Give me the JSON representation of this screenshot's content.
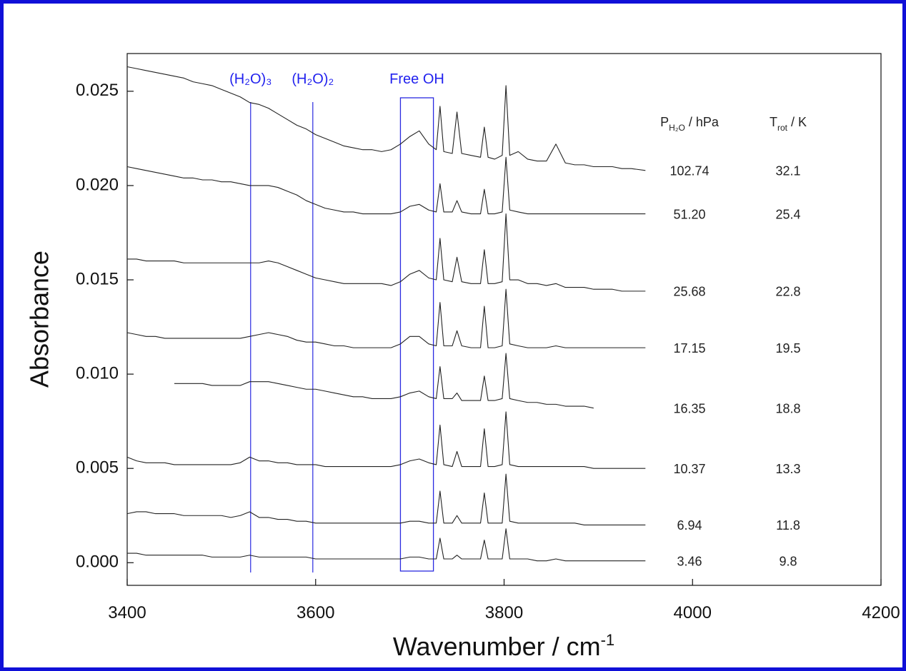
{
  "chart_data": {
    "type": "line",
    "ylabel": "Absorbance",
    "xlabel": {
      "text": "Wavenumber / cm",
      "sup": "-1"
    },
    "xlim": [
      3400,
      4200
    ],
    "xticks": [
      3400,
      3600,
      3800,
      4000,
      4200
    ],
    "ylim": [
      -0.0012,
      0.027
    ],
    "yticks": [
      {
        "value": 0,
        "label": "0.000"
      },
      {
        "value": 0.005,
        "label": "0.005"
      },
      {
        "value": 0.01,
        "label": "0.010"
      },
      {
        "value": 0.015,
        "label": "0.015"
      },
      {
        "value": 0.02,
        "label": "0.020"
      },
      {
        "value": 0.025,
        "label": "0.025"
      }
    ],
    "annotations": [
      {
        "text": "(H₂O)₃",
        "x": 3531
      },
      {
        "text": "(H₂O)₂",
        "x": 3597
      },
      {
        "text": "Free OH",
        "x": [
          3690,
          3725
        ]
      }
    ],
    "column_headers": [
      {
        "text": "P",
        "sub": "H₂O",
        "rest": " / hPa"
      },
      {
        "text": "T",
        "sub": "rot",
        "rest": " / K"
      }
    ],
    "x": [
      3400,
      3410,
      3420,
      3430,
      3440,
      3450,
      3460,
      3470,
      3480,
      3490,
      3500,
      3510,
      3520,
      3530,
      3540,
      3550,
      3560,
      3570,
      3580,
      3590,
      3600,
      3610,
      3620,
      3630,
      3640,
      3650,
      3660,
      3670,
      3680,
      3690,
      3700,
      3710,
      3720,
      3728,
      3732,
      3736,
      3745,
      3750,
      3755,
      3765,
      3775,
      3779,
      3783,
      3790,
      3798,
      3802,
      3806,
      3815,
      3825,
      3835,
      3845,
      3855,
      3865,
      3875,
      3885,
      3895,
      3905,
      3915,
      3925,
      3935,
      3950
    ],
    "series": [
      {
        "name": "102.74",
        "t_rot": "32.1",
        "color": "#222222",
        "values": [
          0.0263,
          0.0262,
          0.0261,
          0.026,
          0.0259,
          0.0258,
          0.0257,
          0.0255,
          0.0254,
          0.0253,
          0.0251,
          0.0249,
          0.0247,
          0.0244,
          0.0243,
          0.0241,
          0.0238,
          0.0235,
          0.0232,
          0.023,
          0.0227,
          0.0225,
          0.0223,
          0.0221,
          0.022,
          0.0219,
          0.0219,
          0.0218,
          0.0219,
          0.0222,
          0.0226,
          0.0229,
          0.0222,
          0.0219,
          0.0242,
          0.0218,
          0.0217,
          0.0239,
          0.0217,
          0.0216,
          0.0215,
          0.0231,
          0.0215,
          0.0214,
          0.0216,
          0.0253,
          0.0216,
          0.0218,
          0.0214,
          0.0213,
          0.0213,
          0.0222,
          0.0212,
          0.0211,
          0.0211,
          0.021,
          0.021,
          0.021,
          0.0209,
          0.0209,
          0.0208
        ]
      },
      {
        "name": "51.20",
        "t_rot": "25.4",
        "color": "#222222",
        "values": [
          0.021,
          0.0209,
          0.0208,
          0.0207,
          0.0206,
          0.0205,
          0.0204,
          0.0204,
          0.0203,
          0.0203,
          0.0202,
          0.0202,
          0.0201,
          0.02,
          0.02,
          0.02,
          0.0199,
          0.0197,
          0.0195,
          0.0192,
          0.019,
          0.0188,
          0.0187,
          0.0186,
          0.0186,
          0.0185,
          0.0185,
          0.0185,
          0.0185,
          0.0186,
          0.0189,
          0.019,
          0.0187,
          0.0186,
          0.0201,
          0.0186,
          0.0186,
          0.0192,
          0.0186,
          0.0185,
          0.0185,
          0.0198,
          0.0185,
          0.0185,
          0.0186,
          0.0215,
          0.0187,
          0.0186,
          0.0185,
          0.0185,
          0.0185,
          0.0185,
          0.0185,
          0.0185,
          0.0185,
          0.0185,
          0.0185,
          0.0185,
          0.0185,
          0.0185,
          0.0185
        ]
      },
      {
        "name": "25.68",
        "t_rot": "22.8",
        "color": "#222222",
        "values": [
          0.0161,
          0.0161,
          0.016,
          0.016,
          0.016,
          0.016,
          0.0159,
          0.0159,
          0.0159,
          0.0159,
          0.0159,
          0.0159,
          0.0159,
          0.0159,
          0.0159,
          0.016,
          0.0159,
          0.0157,
          0.0155,
          0.0153,
          0.0151,
          0.015,
          0.0149,
          0.0148,
          0.0148,
          0.0148,
          0.0148,
          0.0148,
          0.0147,
          0.0149,
          0.0153,
          0.0155,
          0.0151,
          0.015,
          0.0172,
          0.015,
          0.0149,
          0.0162,
          0.0149,
          0.0148,
          0.0148,
          0.0166,
          0.0148,
          0.0148,
          0.0149,
          0.0185,
          0.015,
          0.015,
          0.0148,
          0.0148,
          0.0147,
          0.0148,
          0.0146,
          0.0146,
          0.0146,
          0.0145,
          0.0145,
          0.0145,
          0.0144,
          0.0144,
          0.0144
        ]
      },
      {
        "name": "17.15",
        "t_rot": "19.5",
        "color": "#222222",
        "values": [
          0.0122,
          0.0121,
          0.012,
          0.012,
          0.0119,
          0.0119,
          0.0119,
          0.0119,
          0.0119,
          0.0119,
          0.0119,
          0.0119,
          0.0119,
          0.012,
          0.0121,
          0.0122,
          0.0121,
          0.012,
          0.0118,
          0.0117,
          0.0117,
          0.0116,
          0.0115,
          0.0115,
          0.0114,
          0.0114,
          0.0114,
          0.0114,
          0.0114,
          0.0116,
          0.012,
          0.012,
          0.0116,
          0.0115,
          0.0138,
          0.0115,
          0.0115,
          0.0123,
          0.0115,
          0.0114,
          0.0114,
          0.0136,
          0.0114,
          0.0114,
          0.0115,
          0.0145,
          0.0116,
          0.0115,
          0.0114,
          0.0114,
          0.0114,
          0.0115,
          0.0114,
          0.0114,
          0.0114,
          0.0114,
          0.0114,
          0.0114,
          0.0114,
          0.0114,
          0.0114
        ]
      },
      {
        "name": "16.35",
        "t_rot": "18.8",
        "color": "#222222",
        "values": [
          null,
          null,
          null,
          null,
          null,
          0.0095,
          0.0095,
          0.0095,
          0.0095,
          0.0094,
          0.0094,
          0.0094,
          0.0094,
          0.0096,
          0.0096,
          0.0096,
          0.0095,
          0.0094,
          0.0093,
          0.0092,
          0.0092,
          0.0091,
          0.009,
          0.0089,
          0.0088,
          0.0088,
          0.0087,
          0.0087,
          0.0087,
          0.0088,
          0.009,
          0.0091,
          0.0088,
          0.0087,
          0.0104,
          0.0087,
          0.0087,
          0.009,
          0.0086,
          0.0086,
          0.0086,
          0.0099,
          0.0086,
          0.0086,
          0.0087,
          0.0111,
          0.0087,
          0.0086,
          0.0085,
          0.0085,
          0.0084,
          0.0084,
          0.0083,
          0.0083,
          0.0083,
          0.0082,
          null,
          null,
          null,
          null,
          null
        ]
      },
      {
        "name": "10.37",
        "t_rot": "13.3",
        "color": "#222222",
        "values": [
          0.0056,
          0.0054,
          0.0053,
          0.0053,
          0.0053,
          0.0052,
          0.0052,
          0.0052,
          0.0052,
          0.0052,
          0.0052,
          0.0052,
          0.0053,
          0.0056,
          0.0054,
          0.0054,
          0.0053,
          0.0053,
          0.0052,
          0.0052,
          0.0052,
          0.0051,
          0.0051,
          0.0051,
          0.0051,
          0.0051,
          0.0051,
          0.0051,
          0.0051,
          0.0052,
          0.0054,
          0.0055,
          0.0053,
          0.0052,
          0.0073,
          0.0052,
          0.0051,
          0.0059,
          0.0051,
          0.0051,
          0.0051,
          0.0071,
          0.0051,
          0.0051,
          0.0052,
          0.008,
          0.0052,
          0.0051,
          0.0051,
          0.0051,
          0.0051,
          0.0051,
          0.0051,
          0.0051,
          0.0051,
          0.005,
          0.005,
          0.005,
          0.005,
          0.005,
          0.005
        ]
      },
      {
        "name": "6.94",
        "t_rot": "11.8",
        "color": "#222222",
        "values": [
          0.0026,
          0.0027,
          0.0027,
          0.0026,
          0.0026,
          0.0026,
          0.0025,
          0.0025,
          0.0025,
          0.0025,
          0.0025,
          0.0024,
          0.0025,
          0.0027,
          0.0024,
          0.0024,
          0.0023,
          0.0023,
          0.0022,
          0.0022,
          0.0021,
          0.0021,
          0.0021,
          0.0021,
          0.0021,
          0.0021,
          0.0021,
          0.0021,
          0.0021,
          0.0021,
          0.0022,
          0.0022,
          0.0021,
          0.0021,
          0.0038,
          0.0021,
          0.0021,
          0.0025,
          0.0021,
          0.0021,
          0.0021,
          0.0037,
          0.0021,
          0.0021,
          0.0021,
          0.0047,
          0.0022,
          0.0021,
          0.0021,
          0.0021,
          0.0021,
          0.0021,
          0.0021,
          0.0021,
          0.002,
          0.002,
          0.002,
          0.002,
          0.002,
          0.002,
          0.002
        ]
      },
      {
        "name": "3.46",
        "t_rot": "9.8",
        "color": "#222222",
        "values": [
          0.0005,
          0.0005,
          0.0004,
          0.0004,
          0.0004,
          0.0004,
          0.0004,
          0.0004,
          0.0004,
          0.0003,
          0.0003,
          0.0003,
          0.0003,
          0.0004,
          0.0003,
          0.0003,
          0.0003,
          0.0003,
          0.0003,
          0.0003,
          0.0002,
          0.0002,
          0.0002,
          0.0002,
          0.0002,
          0.0002,
          0.0002,
          0.0002,
          0.0002,
          0.0002,
          0.0003,
          0.0003,
          0.0002,
          0.0002,
          0.0013,
          0.0002,
          0.0002,
          0.0004,
          0.0002,
          0.0002,
          0.0002,
          0.0012,
          0.0002,
          0.0002,
          0.0002,
          0.0018,
          0.0002,
          0.0002,
          0.0002,
          0.0001,
          0.0001,
          0.0002,
          0.0001,
          0.0001,
          0.0001,
          0.0001,
          0.0001,
          0.0001,
          0.0001,
          0.0001,
          0.0001
        ]
      }
    ]
  }
}
